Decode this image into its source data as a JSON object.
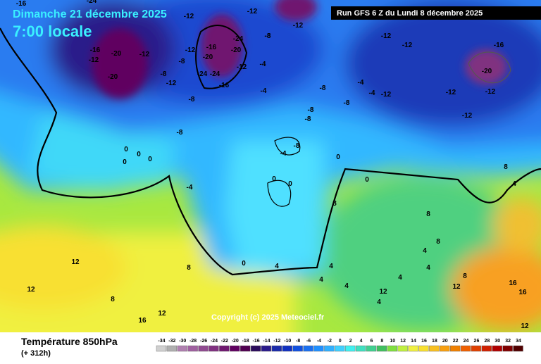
{
  "header": {
    "date": "Dimanche 21 décembre 2025",
    "time": "7:00 locale",
    "run": "Run GFS 6 Z du Lundi 8 décembre 2025"
  },
  "copyright": "Copyright (c) 2025 Meteociel.fr",
  "footer": {
    "title": "Température 850hPa",
    "lead": "(+ 312h)"
  },
  "legend": [
    {
      "value": -34,
      "color": "#d0d0d0"
    },
    {
      "value": -32,
      "color": "#b0b0b0"
    },
    {
      "value": -30,
      "color": "#b080b0"
    },
    {
      "value": -28,
      "color": "#a060a0"
    },
    {
      "value": -26,
      "color": "#904a90"
    },
    {
      "value": -24,
      "color": "#803080"
    },
    {
      "value": -22,
      "color": "#701870"
    },
    {
      "value": -20,
      "color": "#600060"
    },
    {
      "value": -18,
      "color": "#500050"
    },
    {
      "value": -16,
      "color": "#2a0a5a"
    },
    {
      "value": -14,
      "color": "#2a1a8a"
    },
    {
      "value": -12,
      "color": "#1a2aaa"
    },
    {
      "value": -10,
      "color": "#1030c0"
    },
    {
      "value": -8,
      "color": "#1050e0"
    },
    {
      "value": -6,
      "color": "#1a70f0"
    },
    {
      "value": -4,
      "color": "#2090ff"
    },
    {
      "value": -2,
      "color": "#30b0ff"
    },
    {
      "value": 0,
      "color": "#40d0ff"
    },
    {
      "value": 2,
      "color": "#40f0f0"
    },
    {
      "value": 4,
      "color": "#40e0c0"
    },
    {
      "value": 6,
      "color": "#40d090"
    },
    {
      "value": 8,
      "color": "#40c060"
    },
    {
      "value": 10,
      "color": "#80e040"
    },
    {
      "value": 12,
      "color": "#c0f040"
    },
    {
      "value": 14,
      "color": "#f0f040"
    },
    {
      "value": 16,
      "color": "#f8e030"
    },
    {
      "value": 18,
      "color": "#f8c020"
    },
    {
      "value": 20,
      "color": "#f8a010"
    },
    {
      "value": 22,
      "color": "#f08000"
    },
    {
      "value": 24,
      "color": "#f06000"
    },
    {
      "value": 26,
      "color": "#e04000"
    },
    {
      "value": 28,
      "color": "#d02000"
    },
    {
      "value": 30,
      "color": "#b00000"
    },
    {
      "value": 32,
      "color": "#800000"
    },
    {
      "value": 34,
      "color": "#500000"
    }
  ],
  "isotherm_labels": [
    -16,
    -24,
    -12,
    -12,
    -8,
    -12,
    -20,
    -16,
    -12,
    -20,
    -24,
    -20,
    -8,
    -16,
    -20,
    -8,
    -12,
    -12,
    -12,
    -4,
    -8,
    -24,
    -16,
    -8,
    -4,
    -8,
    -12,
    -12,
    -12,
    -16,
    -20,
    -24,
    -12,
    -12,
    -12,
    -12,
    -4,
    -8,
    -4,
    -8,
    -8,
    -8,
    -4,
    -8,
    0,
    0,
    0,
    0,
    -4,
    0,
    0,
    0,
    0,
    4,
    4,
    4,
    8,
    4,
    8,
    4,
    8,
    12,
    8,
    8,
    12,
    12,
    12,
    12,
    16,
    16,
    16,
    12,
    4,
    8,
    4,
    4,
    0,
    4,
    8
  ]
}
